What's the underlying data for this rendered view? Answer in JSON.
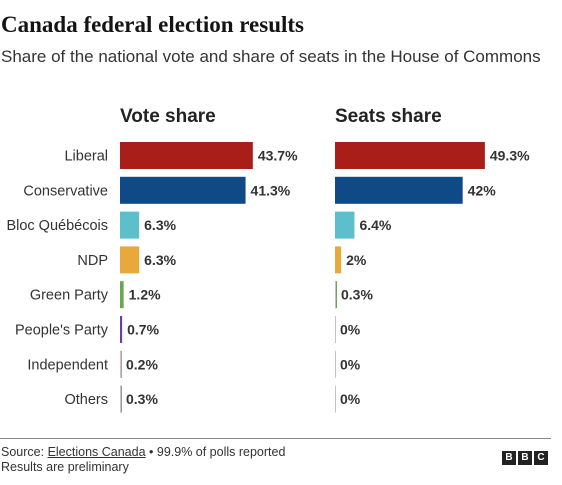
{
  "header": {
    "title": "Canada federal election results",
    "subtitle": "Share of the national vote and share of seats in the House of Commons"
  },
  "footer": {
    "source_prefix": "Source: ",
    "source_link": "Elections Canada",
    "source_suffix": " • 99.9% of polls reported",
    "note": "Results are preliminary",
    "logo_letters": [
      "B",
      "B",
      "C"
    ]
  },
  "chart_data": {
    "type": "bar",
    "orientation": "horizontal",
    "categories": [
      "Liberal",
      "Conservative",
      "Bloc Québécois",
      "NDP",
      "Green Party",
      "People's Party",
      "Independent",
      "Others"
    ],
    "colors": [
      "#a91e18",
      "#0f4a87",
      "#5ebfcc",
      "#e8a83c",
      "#6aa84f",
      "#6a3fa0",
      "#b89aaa",
      "#999999"
    ],
    "panels": [
      {
        "title": "Vote share",
        "values": [
          43.7,
          41.3,
          6.3,
          6.3,
          1.2,
          0.7,
          0.2,
          0.3
        ],
        "labels": [
          "43.7%",
          "41.3%",
          "6.3%",
          "6.3%",
          "1.2%",
          "0.7%",
          "0.2%",
          "0.3%"
        ]
      },
      {
        "title": "Seats share",
        "values": [
          49.3,
          42,
          6.4,
          2,
          0.3,
          0,
          0,
          0
        ],
        "labels": [
          "49.3%",
          "42%",
          "6.4%",
          "2%",
          "0.3%",
          "0%",
          "0%",
          "0%"
        ]
      }
    ]
  }
}
